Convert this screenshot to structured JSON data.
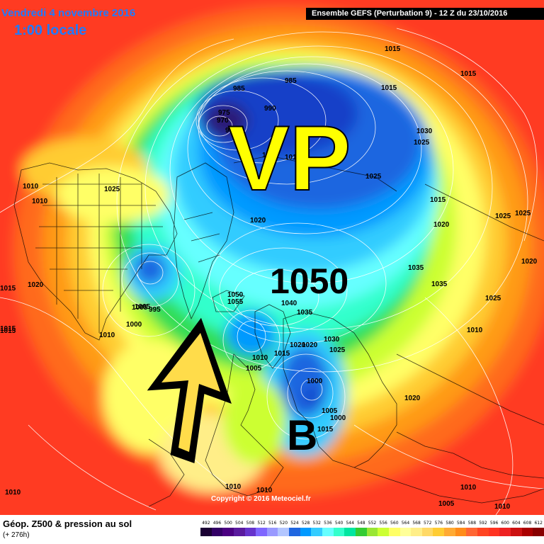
{
  "header": {
    "date": "Vendredi 4 novembre 2016",
    "time": "1:00 locale",
    "run": "Ensemble GEFS  (Perturbation 9)  -  12 Z du 23/10/2016"
  },
  "annotations": {
    "vp": "VP",
    "high_value": "1050",
    "low": "B",
    "arrow": "arrow-up-icon"
  },
  "map_labels": [
    "1015",
    "985",
    "985",
    "990",
    "975",
    "970",
    "985",
    "1000",
    "1015",
    "1030",
    "1025",
    "1015",
    "1010",
    "1010",
    "1025",
    "1020",
    "1025",
    "1020",
    "1025",
    "1035",
    "1035",
    "1020",
    "1025",
    "1015",
    "1020",
    "1050",
    "1055",
    "1040",
    "1035",
    "1030",
    "1025",
    "1020",
    "1015",
    "1010",
    "1005",
    "1000",
    "1005",
    "995",
    "1005",
    "1000",
    "1010",
    "1000",
    "1005",
    "1015",
    "1020",
    "1015",
    "1010",
    "1010",
    "1010",
    "1010",
    "1005",
    "1020",
    "1015",
    "1015",
    "1025",
    "1010",
    "1010",
    "1015"
  ],
  "copyright": "Copyright © 2016 Meteociel.fr",
  "footer": {
    "title": "Géop. Z500 & pression au sol",
    "lead": "(+ 276h)"
  },
  "scale": {
    "values": [
      "492",
      "496",
      "500",
      "504",
      "508",
      "512",
      "516",
      "520",
      "524",
      "528",
      "532",
      "536",
      "540",
      "544",
      "548",
      "552",
      "556",
      "560",
      "564",
      "568",
      "572",
      "576",
      "580",
      "584",
      "588",
      "592",
      "596",
      "600",
      "604",
      "608",
      "612"
    ],
    "colors": [
      "#1a0033",
      "#330066",
      "#4b0082",
      "#5a1a9e",
      "#6633cc",
      "#7f66ff",
      "#9999ff",
      "#b3c6ff",
      "#1f66e0",
      "#0099ff",
      "#33ccff",
      "#66ffff",
      "#33ffcc",
      "#00e6a0",
      "#33cc33",
      "#99e633",
      "#ccff33",
      "#ffff66",
      "#ffff99",
      "#ffee88",
      "#ffd966",
      "#ffcc33",
      "#ffaa33",
      "#ff8c1a",
      "#ff6633",
      "#ff4422",
      "#ff3322",
      "#ee2222",
      "#cc1111",
      "#aa0000",
      "#880000"
    ]
  },
  "colors": {
    "background": "#ff3b23",
    "header_text": "#1e7bff",
    "annotation_vp": "#ffff00"
  }
}
